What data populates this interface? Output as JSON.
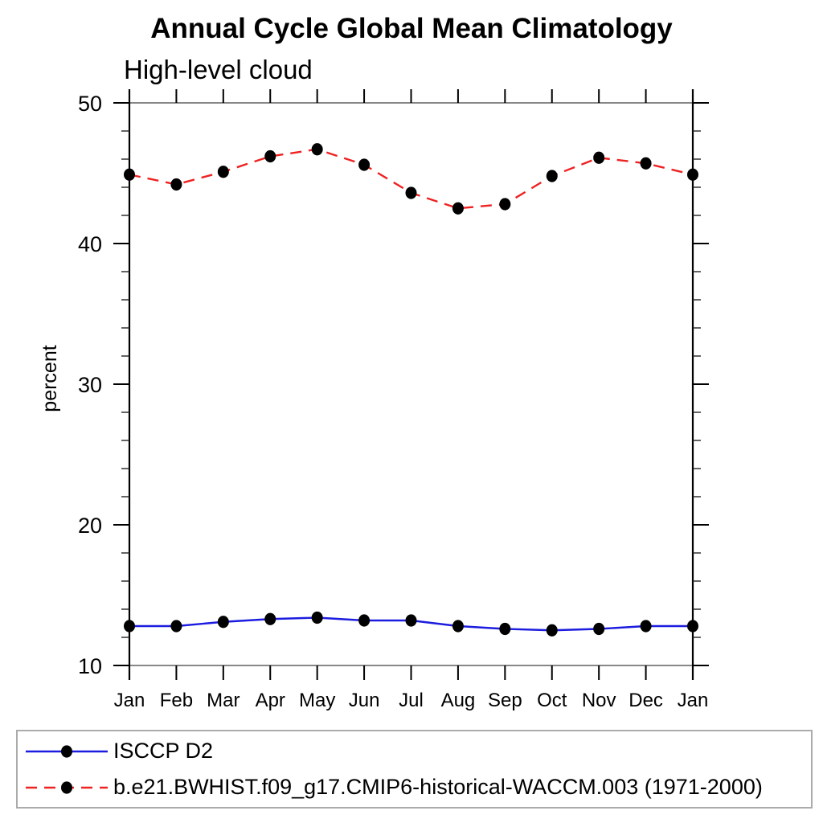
{
  "figure": {
    "title": "Annual Cycle Global Mean Climatology",
    "subtitle": "High-level cloud"
  },
  "chart_data": {
    "type": "line",
    "title": "Annual Cycle Global Mean Climatology",
    "subtitle": "High-level cloud",
    "xlabel": "",
    "ylabel": "percent",
    "categories": [
      "Jan",
      "Feb",
      "Mar",
      "Apr",
      "May",
      "Jun",
      "Jul",
      "Aug",
      "Sep",
      "Oct",
      "Nov",
      "Dec",
      "Jan"
    ],
    "ylim": [
      10,
      50
    ],
    "y_major_step": 10,
    "y_minor_step": 2,
    "grid": false,
    "legend_position": "bottom",
    "series": [
      {
        "name": "ISCCP D2",
        "line_style": "solid",
        "color": "#1c1ce0",
        "marker": "filled-circle",
        "marker_color": "#000000",
        "values": [
          12.8,
          12.8,
          13.1,
          13.3,
          13.4,
          13.2,
          13.2,
          12.8,
          12.6,
          12.5,
          12.6,
          12.8,
          12.8
        ]
      },
      {
        "name": "b.e21.BWHIST.f09_g17.CMIP6-historical-WACCM.003 (1971-2000)",
        "line_style": "dashed",
        "color": "#ee2222",
        "marker": "filled-circle",
        "marker_color": "#000000",
        "values": [
          44.9,
          44.2,
          45.1,
          46.2,
          46.7,
          45.6,
          43.6,
          42.5,
          42.8,
          44.8,
          46.1,
          45.7,
          44.9
        ]
      }
    ]
  }
}
